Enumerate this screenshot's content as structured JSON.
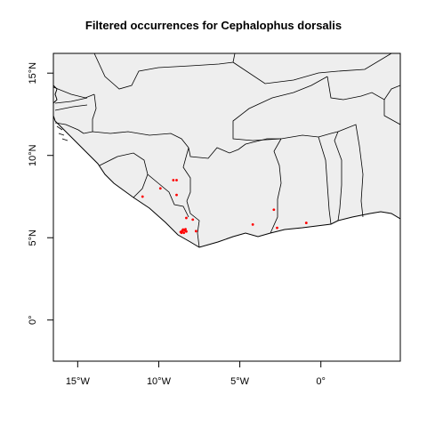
{
  "title": "Filtered occurrences for Cephalophus dorsalis",
  "colors": {
    "land": "#eeeeee",
    "sea": "#ffffff",
    "border": "#000000",
    "points": "#ff0000"
  },
  "axes": {
    "xlim": [
      -16.5,
      4.9
    ],
    "ylim": [
      -2.5,
      16.2
    ],
    "x_ticks": [
      {
        "value": -15,
        "label": "15°W"
      },
      {
        "value": -10,
        "label": "10°W"
      },
      {
        "value": -5,
        "label": "5°W"
      },
      {
        "value": 0,
        "label": "0°"
      }
    ],
    "y_ticks": [
      {
        "value": 0,
        "label": "0°"
      },
      {
        "value": 5,
        "label": "5°N"
      },
      {
        "value": 10,
        "label": "10°N"
      },
      {
        "value": 15,
        "label": "15°N"
      }
    ]
  },
  "chart_data": {
    "type": "scatter",
    "title": "Filtered occurrences for Cephalophus dorsalis",
    "xlim": [
      -16.5,
      4.9
    ],
    "ylim": [
      -2.5,
      16.2
    ],
    "grid": false,
    "points": [
      {
        "x": -11.0,
        "y": 7.5
      },
      {
        "x": -9.9,
        "y": 8.0
      },
      {
        "x": -9.1,
        "y": 8.5
      },
      {
        "x": -8.9,
        "y": 8.5
      },
      {
        "x": -8.9,
        "y": 7.6
      },
      {
        "x": -8.3,
        "y": 6.2
      },
      {
        "x": -7.9,
        "y": 6.1
      },
      {
        "x": -7.7,
        "y": 5.4
      },
      {
        "x": -8.6,
        "y": 5.3
      },
      {
        "x": -8.55,
        "y": 5.42
      },
      {
        "x": -8.5,
        "y": 5.5
      },
      {
        "x": -8.4,
        "y": 5.45
      },
      {
        "x": -8.3,
        "y": 5.38
      },
      {
        "x": -8.65,
        "y": 5.35
      },
      {
        "x": -8.45,
        "y": 5.3
      },
      {
        "x": -8.35,
        "y": 5.52
      },
      {
        "x": -4.2,
        "y": 5.8
      },
      {
        "x": -2.9,
        "y": 6.7
      },
      {
        "x": -2.7,
        "y": 5.6
      },
      {
        "x": -0.9,
        "y": 5.9
      }
    ]
  }
}
